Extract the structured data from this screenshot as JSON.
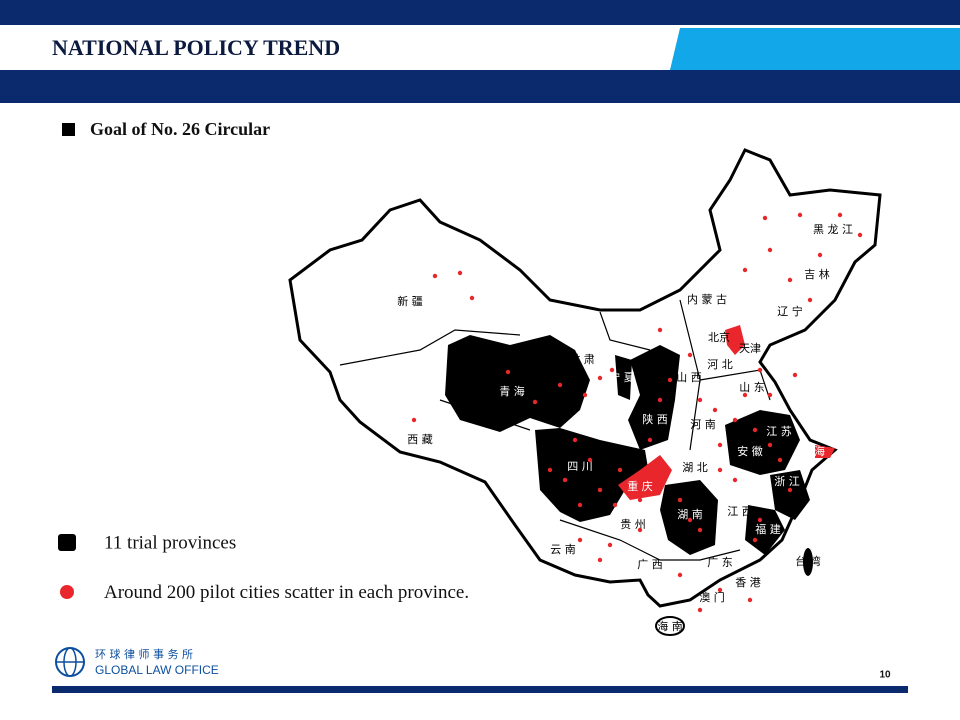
{
  "header": {
    "title": "NATIONAL POLICY TREND"
  },
  "bullet": "Goal of No. 26 Circular",
  "map": {
    "labels": [
      "新 疆",
      "西 藏",
      "青 海",
      "甘 肃",
      "宁 夏",
      "内 蒙 古",
      "黑 龙 江",
      "吉 林",
      "辽 宁",
      "北京",
      "天津",
      "河 北",
      "山 西",
      "山 东",
      "陕 西",
      "河 南",
      "江 苏",
      "安 徽",
      "上海",
      "四 川",
      "重 庆",
      "湖 北",
      "浙 江",
      "湖 南",
      "江 西",
      "贵 州",
      "云 南",
      "广 西",
      "广 东",
      "福 建",
      "香 港",
      "澳 门",
      "海 南",
      "台 湾"
    ]
  },
  "legend": [
    {
      "label": "11 trial provinces"
    },
    {
      "label": "Around 200 pilot cities scatter in each province."
    }
  ],
  "footer": {
    "logo_cn": "环 球 律 师 事 务 所",
    "logo_en": "GLOBAL LAW OFFICE",
    "page": "10"
  }
}
